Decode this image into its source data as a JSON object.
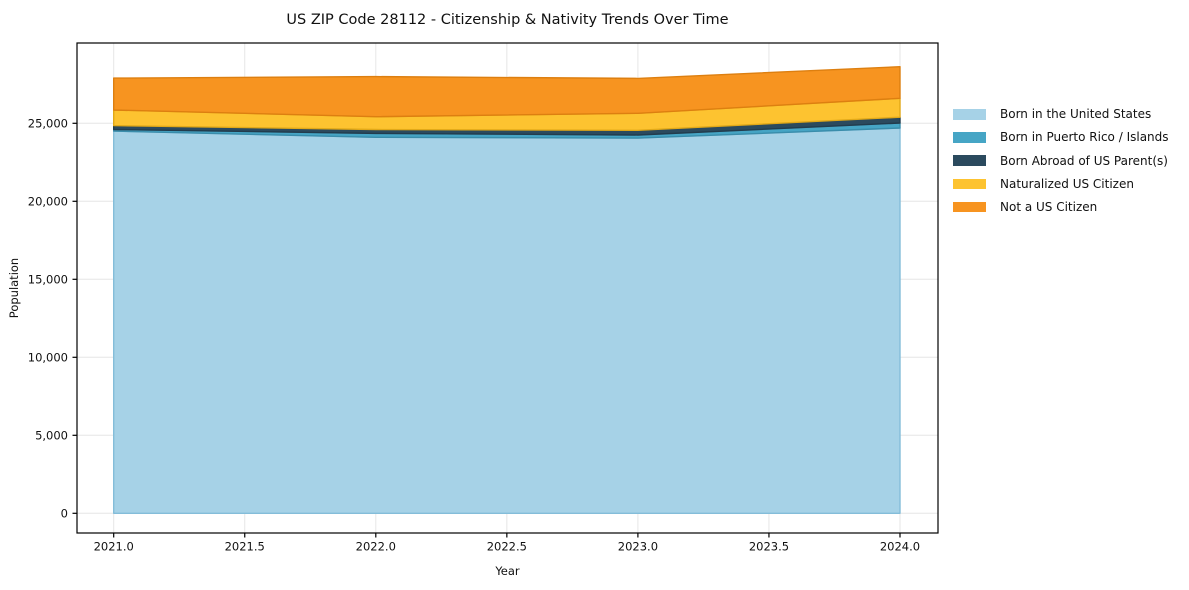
{
  "title": "US ZIP Code 28112 - Citizenship & Nativity Trends Over Time",
  "chart_data": {
    "type": "area",
    "stacked": true,
    "title": "US ZIP Code 28112 - Citizenship & Nativity Trends Over Time",
    "xlabel": "Year",
    "ylabel": "Population",
    "x": [
      2021,
      2022,
      2023,
      2024
    ],
    "series": [
      {
        "name": "Born in the United States",
        "color": "#a6d2e7",
        "edge_color": "#84bdd9",
        "values": [
          24500,
          24100,
          24050,
          24700
        ]
      },
      {
        "name": "Born in Puerto Rico / Islands",
        "color": "#46a5c5",
        "edge_color": "#3a8dab",
        "values": [
          100,
          250,
          200,
          320
        ]
      },
      {
        "name": "Born Abroad of US Parent(s)",
        "color": "#2b4a5e",
        "edge_color": "#223c4d",
        "values": [
          250,
          250,
          300,
          370
        ]
      },
      {
        "name": "Naturalized US Citizen",
        "color": "#fdc330",
        "edge_color": "#e2a918",
        "values": [
          1000,
          820,
          1090,
          1210
        ]
      },
      {
        "name": "Not a US Citizen",
        "color": "#f79420",
        "edge_color": "#dd7f10",
        "values": [
          2050,
          2570,
          2240,
          2030
        ]
      }
    ],
    "totals": [
      27900,
      27990,
      27880,
      28630
    ],
    "xlim": [
      2020.86,
      2024.145
    ],
    "ylim": [
      -1263,
      30147
    ],
    "x_ticks": {
      "values": [
        2021.0,
        2021.5,
        2022.0,
        2022.5,
        2023.0,
        2023.5,
        2024.0
      ],
      "labels": [
        "2021.0",
        "2021.5",
        "2022.0",
        "2022.5",
        "2023.0",
        "2023.5",
        "2024.0"
      ]
    },
    "y_ticks": {
      "values": [
        0,
        5000,
        10000,
        15000,
        20000,
        25000
      ],
      "labels": [
        "0",
        "5,000",
        "10,000",
        "15,000",
        "20,000",
        "25,000"
      ]
    },
    "grid": true,
    "legend_position": "right-outside"
  },
  "colors": {
    "background": "#ffffff",
    "grid": "#e6e6e6",
    "spine": "#000000",
    "text": "#111111"
  }
}
